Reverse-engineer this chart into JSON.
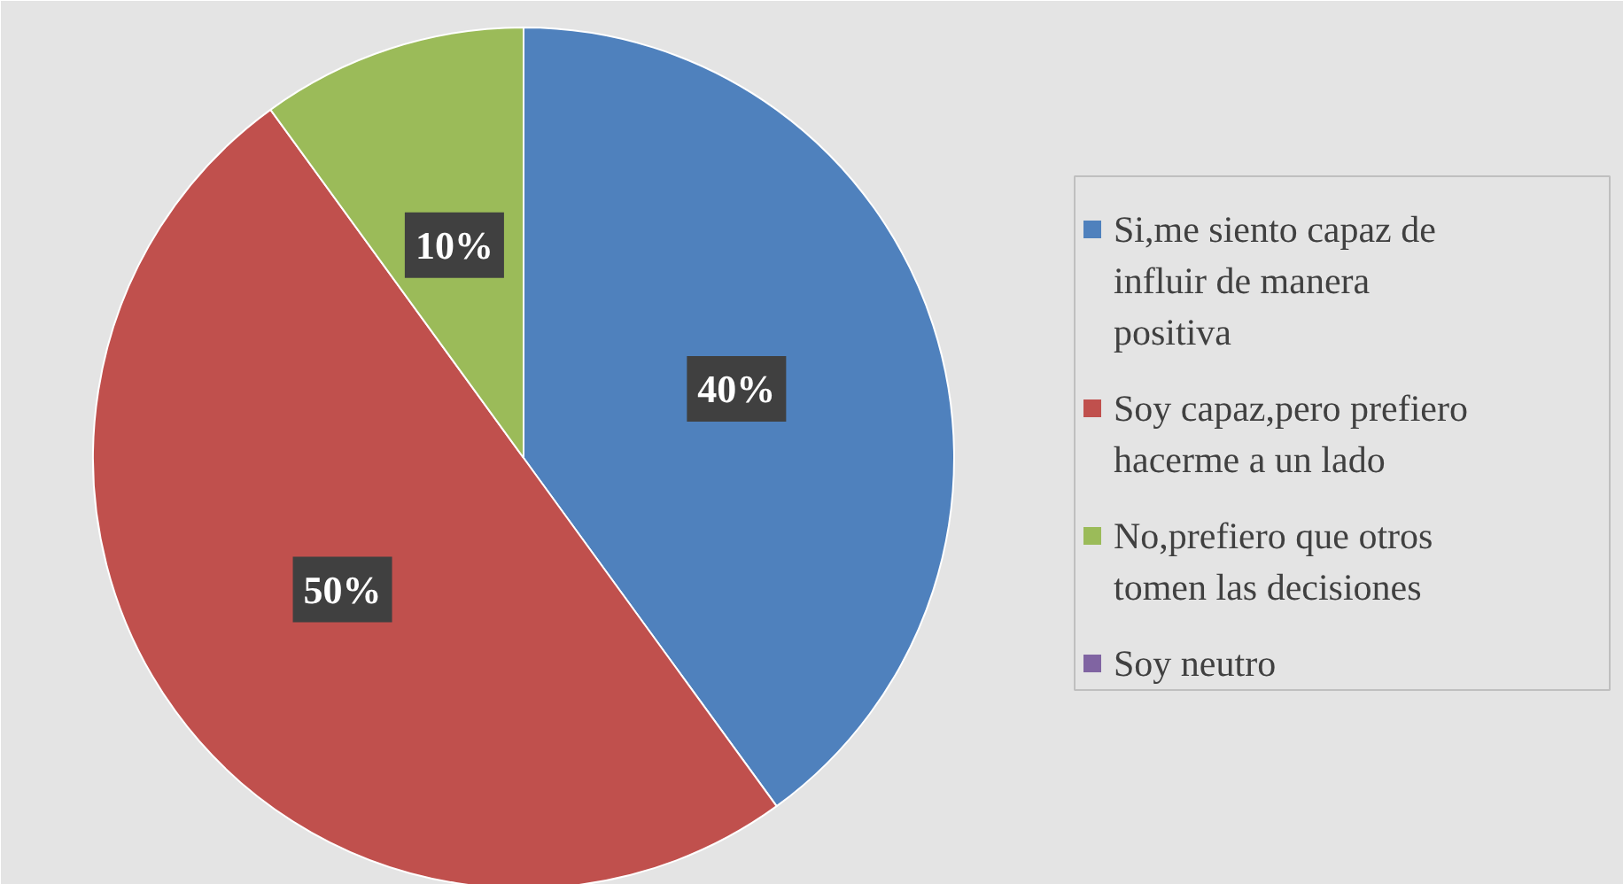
{
  "chart_data": {
    "type": "pie",
    "categories": [
      "Si,me siento capaz de influir de manera positiva",
      "Soy capaz,pero prefiero hacerme a un lado",
      "No,prefiero que otros tomen las decisiones",
      "Soy neutro"
    ],
    "values": [
      40,
      50,
      10,
      0
    ],
    "colors": [
      "#4f81bd",
      "#c0504d",
      "#9bbb59",
      "#8064a2"
    ],
    "value_labels": [
      "40%",
      "50%",
      "10%",
      null
    ],
    "legend": "right"
  }
}
